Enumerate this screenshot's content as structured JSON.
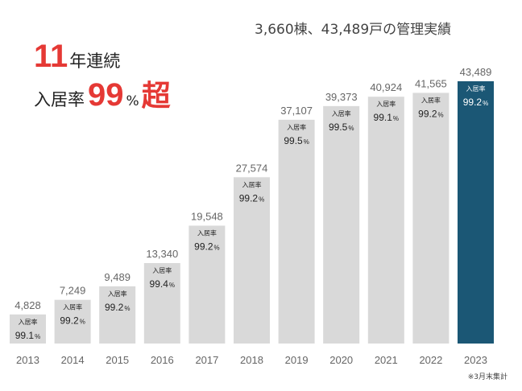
{
  "headline": {
    "line1_number": "11",
    "line1_text": "年連続",
    "line2_prefix": "入居率",
    "line2_number": "99",
    "line2_unit": "%",
    "line2_suffix": "超"
  },
  "summary": "3,660棟、43,489戸の管理実績",
  "footnote": "※3月末集計",
  "colors": {
    "accent_red": "#e53935",
    "bar_gray": "#d9d9d9",
    "bar_highlight": "#1b5775"
  },
  "chart_data": {
    "type": "bar",
    "categories": [
      "2013",
      "2014",
      "2015",
      "2016",
      "2017",
      "2018",
      "2019",
      "2020",
      "2021",
      "2022",
      "2023"
    ],
    "values": [
      4828,
      7249,
      9489,
      13340,
      19548,
      27574,
      37107,
      39373,
      40924,
      41565,
      43489
    ],
    "value_labels": [
      "4,828",
      "7,249",
      "9,489",
      "13,340",
      "19,548",
      "27,574",
      "37,107",
      "39,373",
      "40,924",
      "41,565",
      "43,489"
    ],
    "occupancy_caption": "入居率",
    "occupancy_values": [
      "99.1",
      "99.2",
      "99.2",
      "99.4",
      "99.2",
      "99.2",
      "99.5",
      "99.5",
      "99.1",
      "99.2",
      "99.2"
    ],
    "occupancy_unit": "%",
    "highlight_category": "2023",
    "ylim": [
      0,
      43489
    ],
    "grid": false,
    "title": "",
    "xlabel": "",
    "ylabel": ""
  }
}
